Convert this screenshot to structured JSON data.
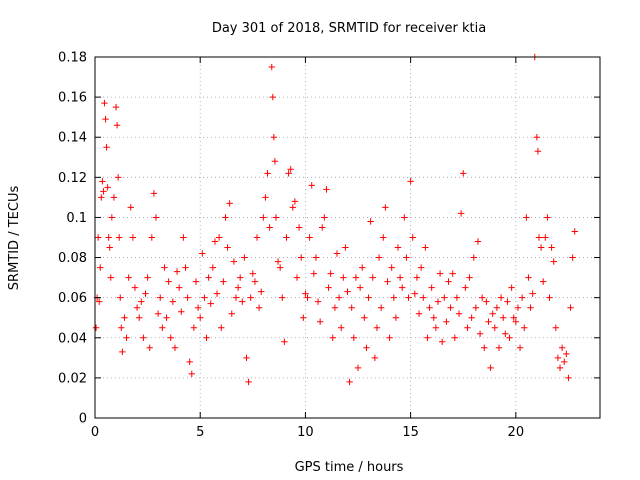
{
  "chart_data": {
    "type": "scatter",
    "title": "Day 301 of 2018, SRMTID for receiver ktia",
    "xlabel": "GPS time / hours",
    "ylabel": "SRMTID / TECUs",
    "xlim": [
      0,
      24
    ],
    "ylim": [
      0,
      0.18
    ],
    "xticks": [
      0,
      5,
      10,
      15,
      20
    ],
    "xtick_labels": [
      "0",
      "5",
      "10",
      "15",
      "20"
    ],
    "yticks": [
      0,
      0.02,
      0.04,
      0.06,
      0.08,
      0.1,
      0.12,
      0.14,
      0.16,
      0.18
    ],
    "ytick_labels": [
      "0",
      "0.02",
      "0.04",
      "0.06",
      "0.08",
      "0.1",
      "0.12",
      "0.14",
      "0.16",
      "0.18"
    ],
    "grid": true,
    "marker": "+",
    "color": "#ff0000",
    "series": [
      {
        "name": "SRMTID",
        "points": [
          [
            0.05,
            0.045
          ],
          [
            0.1,
            0.06
          ],
          [
            0.15,
            0.09
          ],
          [
            0.2,
            0.058
          ],
          [
            0.25,
            0.075
          ],
          [
            0.3,
            0.11
          ],
          [
            0.35,
            0.118
          ],
          [
            0.4,
            0.113
          ],
          [
            0.45,
            0.157
          ],
          [
            0.5,
            0.149
          ],
          [
            0.55,
            0.135
          ],
          [
            0.6,
            0.115
          ],
          [
            0.65,
            0.09
          ],
          [
            0.7,
            0.085
          ],
          [
            0.75,
            0.07
          ],
          [
            0.8,
            0.1
          ],
          [
            0.9,
            0.11
          ],
          [
            1.0,
            0.155
          ],
          [
            1.05,
            0.146
          ],
          [
            1.1,
            0.12
          ],
          [
            1.15,
            0.09
          ],
          [
            1.2,
            0.06
          ],
          [
            1.25,
            0.045
          ],
          [
            1.3,
            0.033
          ],
          [
            1.4,
            0.05
          ],
          [
            1.5,
            0.04
          ],
          [
            1.6,
            0.07
          ],
          [
            1.7,
            0.105
          ],
          [
            1.8,
            0.09
          ],
          [
            1.9,
            0.065
          ],
          [
            2.0,
            0.055
          ],
          [
            2.1,
            0.05
          ],
          [
            2.2,
            0.058
          ],
          [
            2.3,
            0.04
          ],
          [
            2.4,
            0.062
          ],
          [
            2.5,
            0.07
          ],
          [
            2.6,
            0.035
          ],
          [
            2.7,
            0.09
          ],
          [
            2.8,
            0.112
          ],
          [
            2.9,
            0.1
          ],
          [
            3.0,
            0.052
          ],
          [
            3.1,
            0.06
          ],
          [
            3.2,
            0.045
          ],
          [
            3.3,
            0.075
          ],
          [
            3.4,
            0.05
          ],
          [
            3.5,
            0.068
          ],
          [
            3.6,
            0.04
          ],
          [
            3.7,
            0.058
          ],
          [
            3.8,
            0.035
          ],
          [
            3.9,
            0.073
          ],
          [
            4.0,
            0.065
          ],
          [
            4.1,
            0.053
          ],
          [
            4.2,
            0.09
          ],
          [
            4.3,
            0.075
          ],
          [
            4.4,
            0.06
          ],
          [
            4.5,
            0.028
          ],
          [
            4.6,
            0.022
          ],
          [
            4.7,
            0.045
          ],
          [
            4.8,
            0.068
          ],
          [
            4.9,
            0.055
          ],
          [
            5.0,
            0.05
          ],
          [
            5.1,
            0.082
          ],
          [
            5.2,
            0.06
          ],
          [
            5.3,
            0.04
          ],
          [
            5.4,
            0.07
          ],
          [
            5.5,
            0.057
          ],
          [
            5.6,
            0.075
          ],
          [
            5.7,
            0.088
          ],
          [
            5.8,
            0.062
          ],
          [
            5.9,
            0.09
          ],
          [
            6.0,
            0.045
          ],
          [
            6.1,
            0.068
          ],
          [
            6.2,
            0.1
          ],
          [
            6.3,
            0.085
          ],
          [
            6.4,
            0.107
          ],
          [
            6.5,
            0.052
          ],
          [
            6.6,
            0.078
          ],
          [
            6.7,
            0.06
          ],
          [
            6.8,
            0.065
          ],
          [
            6.9,
            0.07
          ],
          [
            7.0,
            0.058
          ],
          [
            7.1,
            0.08
          ],
          [
            7.2,
            0.03
          ],
          [
            7.3,
            0.018
          ],
          [
            7.4,
            0.06
          ],
          [
            7.5,
            0.072
          ],
          [
            7.6,
            0.068
          ],
          [
            7.7,
            0.09
          ],
          [
            7.8,
            0.055
          ],
          [
            7.9,
            0.063
          ],
          [
            8.0,
            0.1
          ],
          [
            8.1,
            0.11
          ],
          [
            8.2,
            0.122
          ],
          [
            8.3,
            0.095
          ],
          [
            8.4,
            0.175
          ],
          [
            8.45,
            0.16
          ],
          [
            8.5,
            0.14
          ],
          [
            8.55,
            0.128
          ],
          [
            8.6,
            0.1
          ],
          [
            8.7,
            0.078
          ],
          [
            8.8,
            0.075
          ],
          [
            8.9,
            0.06
          ],
          [
            9.0,
            0.038
          ],
          [
            9.1,
            0.09
          ],
          [
            9.2,
            0.122
          ],
          [
            9.3,
            0.124
          ],
          [
            9.4,
            0.105
          ],
          [
            9.5,
            0.108
          ],
          [
            9.6,
            0.07
          ],
          [
            9.7,
            0.095
          ],
          [
            9.8,
            0.08
          ],
          [
            9.9,
            0.05
          ],
          [
            10.0,
            0.062
          ],
          [
            10.1,
            0.06
          ],
          [
            10.2,
            0.09
          ],
          [
            10.3,
            0.116
          ],
          [
            10.4,
            0.072
          ],
          [
            10.5,
            0.08
          ],
          [
            10.6,
            0.058
          ],
          [
            10.7,
            0.048
          ],
          [
            10.8,
            0.095
          ],
          [
            10.9,
            0.1
          ],
          [
            11.0,
            0.114
          ],
          [
            11.1,
            0.065
          ],
          [
            11.2,
            0.072
          ],
          [
            11.3,
            0.04
          ],
          [
            11.4,
            0.055
          ],
          [
            11.5,
            0.082
          ],
          [
            11.6,
            0.06
          ],
          [
            11.7,
            0.045
          ],
          [
            11.8,
            0.07
          ],
          [
            11.9,
            0.085
          ],
          [
            12.0,
            0.063
          ],
          [
            12.1,
            0.018
          ],
          [
            12.2,
            0.055
          ],
          [
            12.3,
            0.04
          ],
          [
            12.4,
            0.07
          ],
          [
            12.5,
            0.025
          ],
          [
            12.6,
            0.065
          ],
          [
            12.7,
            0.075
          ],
          [
            12.8,
            0.05
          ],
          [
            12.9,
            0.035
          ],
          [
            13.0,
            0.06
          ],
          [
            13.1,
            0.098
          ],
          [
            13.2,
            0.07
          ],
          [
            13.3,
            0.03
          ],
          [
            13.4,
            0.045
          ],
          [
            13.5,
            0.08
          ],
          [
            13.6,
            0.055
          ],
          [
            13.7,
            0.09
          ],
          [
            13.8,
            0.105
          ],
          [
            13.9,
            0.068
          ],
          [
            14.0,
            0.04
          ],
          [
            14.1,
            0.075
          ],
          [
            14.2,
            0.06
          ],
          [
            14.3,
            0.05
          ],
          [
            14.4,
            0.085
          ],
          [
            14.5,
            0.07
          ],
          [
            14.6,
            0.065
          ],
          [
            14.7,
            0.1
          ],
          [
            14.8,
            0.08
          ],
          [
            14.9,
            0.06
          ],
          [
            15.0,
            0.118
          ],
          [
            15.1,
            0.09
          ],
          [
            15.2,
            0.062
          ],
          [
            15.3,
            0.07
          ],
          [
            15.4,
            0.052
          ],
          [
            15.5,
            0.075
          ],
          [
            15.6,
            0.06
          ],
          [
            15.7,
            0.085
          ],
          [
            15.8,
            0.04
          ],
          [
            15.9,
            0.055
          ],
          [
            16.0,
            0.065
          ],
          [
            16.1,
            0.05
          ],
          [
            16.2,
            0.045
          ],
          [
            16.3,
            0.058
          ],
          [
            16.4,
            0.072
          ],
          [
            16.5,
            0.038
          ],
          [
            16.6,
            0.06
          ],
          [
            16.7,
            0.048
          ],
          [
            16.8,
            0.068
          ],
          [
            16.9,
            0.055
          ],
          [
            17.0,
            0.072
          ],
          [
            17.1,
            0.04
          ],
          [
            17.2,
            0.06
          ],
          [
            17.3,
            0.052
          ],
          [
            17.4,
            0.102
          ],
          [
            17.5,
            0.122
          ],
          [
            17.6,
            0.065
          ],
          [
            17.7,
            0.045
          ],
          [
            17.8,
            0.07
          ],
          [
            17.9,
            0.05
          ],
          [
            18.0,
            0.08
          ],
          [
            18.1,
            0.055
          ],
          [
            18.2,
            0.088
          ],
          [
            18.3,
            0.042
          ],
          [
            18.4,
            0.06
          ],
          [
            18.5,
            0.035
          ],
          [
            18.6,
            0.058
          ],
          [
            18.7,
            0.048
          ],
          [
            18.8,
            0.025
          ],
          [
            18.9,
            0.052
          ],
          [
            19.0,
            0.045
          ],
          [
            19.1,
            0.055
          ],
          [
            19.2,
            0.035
          ],
          [
            19.3,
            0.06
          ],
          [
            19.4,
            0.05
          ],
          [
            19.5,
            0.042
          ],
          [
            19.6,
            0.058
          ],
          [
            19.7,
            0.04
          ],
          [
            19.8,
            0.065
          ],
          [
            19.9,
            0.05
          ],
          [
            20.0,
            0.048
          ],
          [
            20.1,
            0.055
          ],
          [
            20.2,
            0.035
          ],
          [
            20.3,
            0.06
          ],
          [
            20.4,
            0.045
          ],
          [
            20.5,
            0.1
          ],
          [
            20.6,
            0.07
          ],
          [
            20.7,
            0.055
          ],
          [
            20.8,
            0.062
          ],
          [
            20.9,
            0.18
          ],
          [
            21.0,
            0.14
          ],
          [
            21.05,
            0.133
          ],
          [
            21.1,
            0.09
          ],
          [
            21.2,
            0.085
          ],
          [
            21.3,
            0.068
          ],
          [
            21.4,
            0.09
          ],
          [
            21.5,
            0.1
          ],
          [
            21.6,
            0.06
          ],
          [
            21.7,
            0.085
          ],
          [
            21.8,
            0.078
          ],
          [
            21.9,
            0.045
          ],
          [
            22.0,
            0.03
          ],
          [
            22.1,
            0.025
          ],
          [
            22.2,
            0.035
          ],
          [
            22.3,
            0.028
          ],
          [
            22.4,
            0.032
          ],
          [
            22.5,
            0.02
          ],
          [
            22.6,
            0.055
          ],
          [
            22.7,
            0.08
          ],
          [
            22.8,
            0.093
          ]
        ]
      }
    ]
  }
}
